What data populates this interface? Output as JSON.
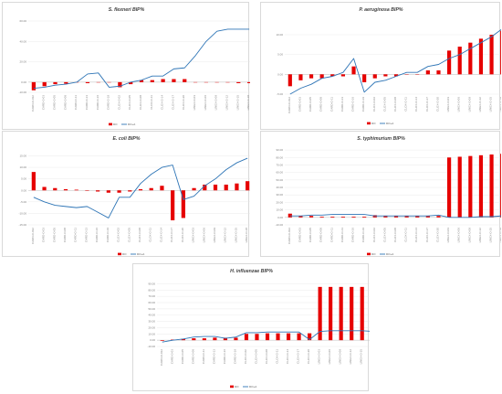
{
  "colors": {
    "bar": "#e60000",
    "line": "#2e75b6",
    "grid": "#e6e6e6",
    "axis": "#bfbfbf"
  },
  "chart_data": [
    {
      "type": "bar",
      "title": "S. flexneri BIP%",
      "legend": [
        "DO",
        "DO+A"
      ],
      "legend_position": "bottom",
      "categories": [
        "CARD-O-012",
        "CARD-O-03",
        "CARD-O-05",
        "CARD-O-08",
        "CARD-O-11",
        "CARD-O-13",
        "CARD-O-16",
        "CARD-O-19",
        "CLOX-O-02",
        "CLOX-O-05",
        "CLOX-O-08",
        "CLOX-O-11",
        "CLOX-O-14",
        "CLOX-O-17",
        "CLOX-O-20",
        "LINEX-O-03",
        "LINEX-O-06",
        "LINEX-O-09",
        "LINEX-O-12",
        "LINEX-O-15",
        "LINEX-O-18"
      ],
      "yticks": [
        "60.00",
        "40.00",
        "20.00",
        "0.00",
        "-10.00"
      ],
      "ylim": [
        -10,
        60
      ],
      "series": [
        {
          "kind": "bar",
          "values": [
            -8,
            -4,
            -2,
            -1.5,
            0,
            -1,
            0,
            0,
            -5,
            -2,
            2,
            2,
            3,
            3,
            3,
            0,
            0,
            0,
            0,
            -1,
            -1
          ]
        },
        {
          "kind": "line",
          "values": [
            -6,
            -5,
            -3,
            -2,
            0,
            8,
            9,
            -5,
            -4,
            0,
            2,
            6,
            6,
            13,
            14,
            26,
            40,
            50,
            52,
            52,
            52
          ]
        }
      ]
    },
    {
      "type": "bar",
      "title": "P. aeruginosa BIP%",
      "legend": [
        "DO",
        "DO+A"
      ],
      "legend_position": "bottom",
      "categories": [
        "CARD-O-012",
        "CARD-O-03",
        "CARD-O-05",
        "CARD-O-08",
        "CARD-O-11",
        "CARD-O-13",
        "CARD-O-16",
        "CARD-O-19",
        "CLOX-O-02",
        "CLOX-O-05",
        "CLOX-O-08",
        "CLOX-O-11",
        "CLOX-O-14",
        "CLOX-O-17",
        "CLOX-O-20",
        "LINEX-O-03",
        "LINEX-O-06",
        "LINEX-O-09",
        "LINEX-O-12",
        "LINEX-O-15",
        "LINEX-O-18"
      ],
      "yticks": [
        "10.00",
        "5.00",
        "0.00",
        "-5.00"
      ],
      "ylim": [
        -5,
        13
      ],
      "series": [
        {
          "kind": "bar",
          "values": [
            -3,
            -1.5,
            -1,
            -1,
            -0.5,
            -0.5,
            2,
            -2,
            -1,
            -0.5,
            -0.5,
            0,
            0,
            1,
            1,
            6,
            7,
            8,
            9,
            10,
            11
          ]
        },
        {
          "kind": "line",
          "values": [
            -5,
            -3.5,
            -2.5,
            -1,
            -0.5,
            0.5,
            4,
            -4.5,
            -2,
            -1.5,
            -0.5,
            0.5,
            0.5,
            2,
            2.5,
            4,
            5,
            6.5,
            8,
            9.5,
            11.5
          ]
        }
      ]
    },
    {
      "type": "bar",
      "title": "E. coli BIP%",
      "legend": [
        "DO",
        "DO+A"
      ],
      "legend_position": "bottom",
      "categories": [
        "CARD-O-012",
        "CARD-O-03",
        "CARD-O-05",
        "CARD-O-08",
        "CARD-O-11",
        "CARD-O-13",
        "CARD-O-16",
        "CARD-O-19",
        "CLOX-O-02",
        "CLOX-O-05",
        "CLOX-O-08",
        "CLOX-O-11",
        "CLOX-O-14",
        "CLOX-O-17",
        "CLOX-O-20",
        "LINEX-O-03",
        "LINEX-O-06",
        "LINEX-O-09",
        "LINEX-O-12",
        "LINEX-O-15",
        "LINEX-O-18"
      ],
      "yticks": [
        "15.00",
        "10.00",
        "5.00",
        "0.00",
        "-5.00",
        "-10.00",
        "-15.00"
      ],
      "ylim": [
        -15,
        16
      ],
      "series": [
        {
          "kind": "bar",
          "values": [
            8,
            1.5,
            1,
            0.5,
            0.3,
            -0.2,
            -0.5,
            -1,
            -1,
            -0.5,
            0.5,
            1,
            2,
            -13,
            -12,
            1,
            2.5,
            2.5,
            2.5,
            3,
            4
          ]
        },
        {
          "kind": "line",
          "values": [
            -3,
            -5,
            -6.5,
            -7,
            -7.5,
            -7,
            -9.5,
            -12,
            -3,
            -3,
            3,
            7,
            10,
            11,
            -4,
            -2.5,
            2,
            5,
            9,
            12,
            14
          ]
        }
      ]
    },
    {
      "type": "bar",
      "title": "S. typhimurium BIP%",
      "legend": [
        "DO",
        "DO+A"
      ],
      "legend_position": "bottom",
      "categories": [
        "CARD-O-012",
        "CARD-O-03",
        "CARD-O-05",
        "CARD-O-08",
        "CARD-O-11",
        "CARD-O-13",
        "CARD-O-16",
        "CARD-O-19",
        "CLOX-O-02",
        "CLOX-O-05",
        "CLOX-O-08",
        "CLOX-O-11",
        "CLOX-O-14",
        "CLOX-O-17",
        "CLOX-O-20",
        "LINEX-O-03",
        "LINEX-O-06",
        "LINEX-O-09",
        "LINEX-O-12",
        "LINEX-O-15",
        "LINEX-O-18"
      ],
      "yticks": [
        "90.00",
        "80.00",
        "70.00",
        "60.00",
        "50.00",
        "40.00",
        "30.00",
        "20.00",
        "10.00",
        "0.00",
        "-10.00"
      ],
      "ylim": [
        -10,
        95
      ],
      "series": [
        {
          "kind": "bar",
          "values": [
            5,
            2,
            2,
            1,
            1,
            1,
            1,
            1,
            3,
            2,
            2,
            2,
            2,
            2,
            2,
            80,
            81,
            82,
            83,
            84,
            85
          ]
        },
        {
          "kind": "line",
          "values": [
            2,
            2,
            3,
            3,
            4,
            4,
            4,
            4,
            2,
            2,
            2,
            2,
            2,
            2,
            3,
            0,
            0,
            0,
            1,
            1,
            2
          ]
        }
      ]
    },
    {
      "type": "bar",
      "title": "H. influenzae BIP%",
      "legend": [
        "DO",
        "DO+A"
      ],
      "legend_position": "bottom",
      "categories": [
        "CARD-O-012",
        "CARD-O-03",
        "CARD-O-05",
        "CARD-O-08",
        "CARD-O-11",
        "CARD-O-13",
        "CARD-O-16",
        "CARD-O-19",
        "CLOX-O-02",
        "CLOX-O-05",
        "CLOX-O-08",
        "CLOX-O-11",
        "CLOX-O-14",
        "CLOX-O-17",
        "CLOX-O-20",
        "LINEX-O-03",
        "LINEX-O-06",
        "LINEX-O-09",
        "LINEX-O-12",
        "LINEX-O-15",
        "LINEX-O-18"
      ],
      "yticks": [
        "90.00",
        "80.00",
        "70.00",
        "60.00",
        "50.00",
        "40.00",
        "30.00",
        "20.00",
        "10.00",
        "0.00",
        "-10.00"
      ],
      "ylim": [
        -10,
        95
      ],
      "series": [
        {
          "kind": "bar",
          "values": [
            -1,
            1,
            2,
            3,
            3,
            4,
            4,
            4,
            10,
            10,
            11,
            11,
            11,
            11,
            11,
            85,
            85,
            85,
            85,
            85,
            85
          ]
        },
        {
          "kind": "line",
          "values": [
            -3,
            0,
            2,
            5,
            6,
            6,
            3,
            5,
            12,
            12,
            13,
            13,
            13,
            13,
            1,
            14,
            15,
            15,
            15,
            15,
            14
          ]
        }
      ]
    }
  ]
}
